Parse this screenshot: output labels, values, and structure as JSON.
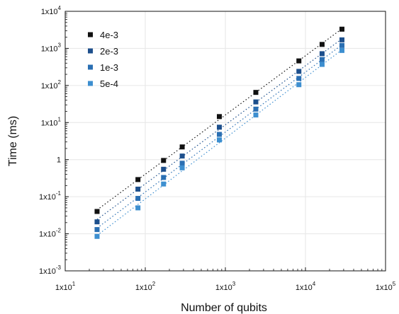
{
  "chart_data": {
    "type": "scatter",
    "title": "",
    "xlabel": "Number of qubits",
    "ylabel": "Time (ms)",
    "xscale": "log",
    "yscale": "log",
    "xlim": [
      10,
      100000
    ],
    "ylim": [
      0.001,
      10000
    ],
    "grid": true,
    "legend_position": "top-left",
    "x_tick_labels": [
      {
        "value": 10,
        "base": "1x10",
        "exp": "1"
      },
      {
        "value": 100,
        "base": "1x10",
        "exp": "2"
      },
      {
        "value": 1000,
        "base": "1x10",
        "exp": "3"
      },
      {
        "value": 10000,
        "base": "1x10",
        "exp": "4"
      },
      {
        "value": 100000,
        "base": "1x10",
        "exp": "5"
      }
    ],
    "y_tick_labels": [
      {
        "value": 0.001,
        "base": "1x10",
        "exp": "-3"
      },
      {
        "value": 0.01,
        "base": "1x10",
        "exp": "-2"
      },
      {
        "value": 0.1,
        "base": "1x10",
        "exp": "-1"
      },
      {
        "value": 1,
        "base": "1",
        "exp": ""
      },
      {
        "value": 10,
        "base": "1x10",
        "exp": "1"
      },
      {
        "value": 100,
        "base": "1x10",
        "exp": "2"
      },
      {
        "value": 1000,
        "base": "1x10",
        "exp": "3"
      },
      {
        "value": 10000,
        "base": "1x10",
        "exp": "4"
      }
    ],
    "x": [
      25,
      81,
      169,
      289,
      841,
      2401,
      8281,
      16129,
      28561
    ],
    "series": [
      {
        "name": "4e-3",
        "color": "#111111",
        "values": [
          0.04,
          0.29,
          0.95,
          2.2,
          14.5,
          65,
          460,
          1280,
          3300
        ]
      },
      {
        "name": "2e-3",
        "color": "#1d4f8c",
        "values": [
          0.021,
          0.16,
          0.55,
          1.25,
          7.5,
          36,
          240,
          720,
          1700
        ]
      },
      {
        "name": "1e-3",
        "color": "#2a6fb3",
        "values": [
          0.013,
          0.09,
          0.33,
          0.8,
          4.8,
          23,
          155,
          500,
          1200
        ]
      },
      {
        "name": "5e-4",
        "color": "#3d8fd0",
        "values": [
          0.0085,
          0.05,
          0.22,
          0.6,
          3.4,
          16,
          105,
          370,
          880
        ]
      }
    ]
  }
}
